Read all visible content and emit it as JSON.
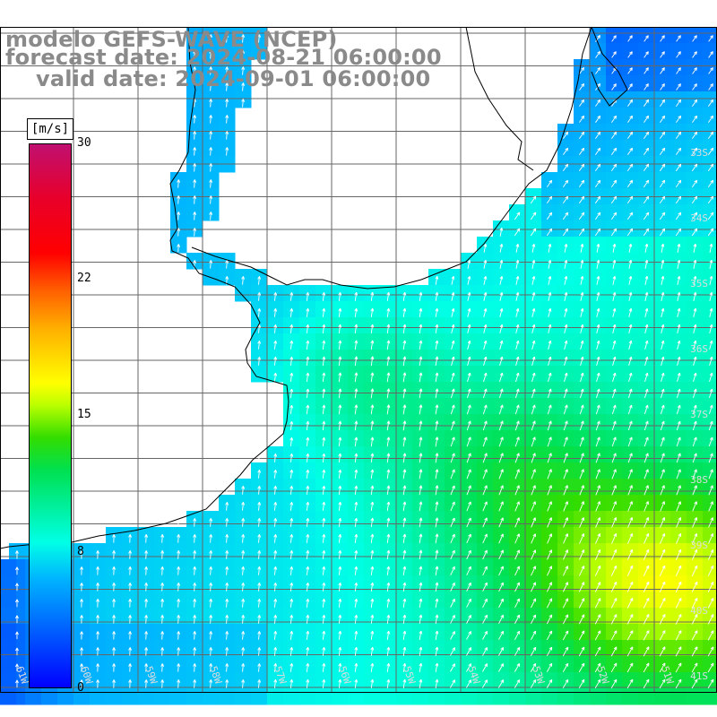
{
  "title": {
    "line1": "modelo GEFS-WAVE (NCEP)",
    "line2": "forecast date: 2024-08-21 06:00:00",
    "line3": "valid date: 2024-09-01 06:00:00"
  },
  "colorbar": {
    "units": "[m/s]",
    "ticks": [
      "30",
      "22",
      "15",
      "8",
      "0"
    ],
    "tick_values": [
      30,
      22,
      15,
      8,
      0
    ],
    "range": [
      0,
      30
    ]
  },
  "axes": {
    "lat_labels": [
      "33S",
      "34S",
      "35S",
      "36S",
      "37S",
      "38S",
      "39S",
      "40S",
      "41S"
    ],
    "lon_labels": [
      "61W",
      "60W",
      "59W",
      "58W",
      "57W",
      "56W",
      "55W",
      "54W",
      "53W",
      "52W",
      "51W"
    ]
  }
}
